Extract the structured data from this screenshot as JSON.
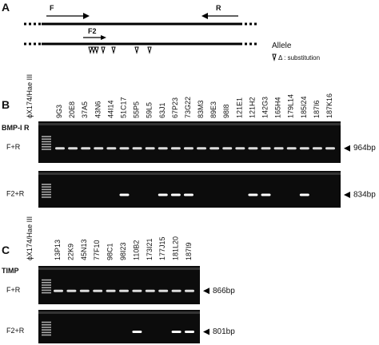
{
  "panel_a": {
    "label": "A",
    "primer_f": "F",
    "primer_r": "R",
    "primer_f2": "F2",
    "allele": "Allele",
    "legend": "Δ : substitution"
  },
  "panel_b": {
    "label": "B",
    "ladder": "ϕX174/Hae III",
    "gene": "BMP-I R",
    "lanes": [
      "9G3",
      "20E8",
      "37A5",
      "43N6",
      "44I14",
      "51C17",
      "55P5",
      "59L5",
      "63J1",
      "67P23",
      "73G22",
      "83M3",
      "89E3",
      "98I8",
      "121E1",
      "121H2",
      "142G3",
      "165H4",
      "179L14",
      "185I24",
      "187I6",
      "187K16"
    ],
    "gels": [
      {
        "primers": "F+R",
        "size": "964bp"
      },
      {
        "primers": "F2+R",
        "size": "834bp"
      }
    ]
  },
  "panel_c": {
    "label": "C",
    "ladder": "ϕX174/Hae III",
    "gene": "TIMP",
    "lanes": [
      "13P13",
      "22K9",
      "45N13",
      "77F10",
      "98C1",
      "98I23",
      "110B2",
      "173I21",
      "177J15",
      "181L20",
      "187I9"
    ],
    "gels": [
      {
        "primers": "F+R",
        "size": "866bp"
      },
      {
        "primers": "F2+R",
        "size": "801bp"
      }
    ]
  }
}
